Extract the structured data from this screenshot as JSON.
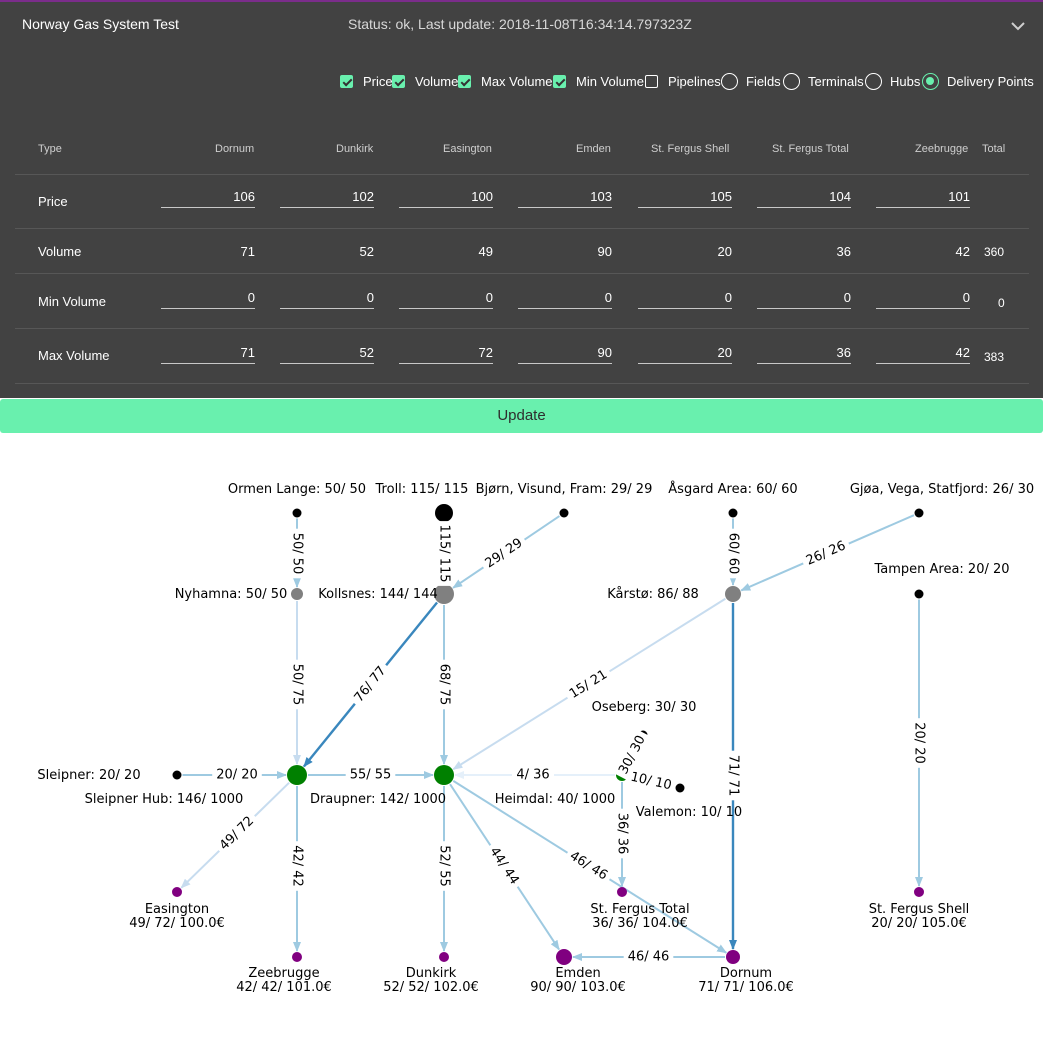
{
  "header": {
    "title": "Norway Gas System Test",
    "status": "Status: ok, Last update: 2018-11-08T16:34:14.797323Z"
  },
  "toggles": [
    {
      "label": "Price",
      "checked": true
    },
    {
      "label": "Volume",
      "checked": true
    },
    {
      "label": "Max Volume",
      "checked": true
    },
    {
      "label": "Min Volume",
      "checked": true
    },
    {
      "label": "Pipelines",
      "checked": false
    }
  ],
  "radios": [
    {
      "label": "Fields",
      "selected": false
    },
    {
      "label": "Terminals",
      "selected": false
    },
    {
      "label": "Hubs",
      "selected": false
    },
    {
      "label": "Delivery Points",
      "selected": true
    }
  ],
  "table": {
    "headers": [
      "Type",
      "Dornum",
      "Dunkirk",
      "Easington",
      "Emden",
      "St. Fergus Shell",
      "St. Fergus Total",
      "Zeebrugge",
      "Total"
    ],
    "rows": {
      "price": {
        "label": "Price",
        "values": [
          "106",
          "102",
          "100",
          "103",
          "105",
          "104",
          "101"
        ],
        "total": ""
      },
      "volume": {
        "label": "Volume",
        "values": [
          "71",
          "52",
          "49",
          "90",
          "20",
          "36",
          "42"
        ],
        "total": "360"
      },
      "min_volume": {
        "label": "Min Volume",
        "values": [
          "0",
          "0",
          "0",
          "0",
          "0",
          "0",
          "0"
        ],
        "total": "0"
      },
      "max_volume": {
        "label": "Max Volume",
        "values": [
          "71",
          "52",
          "72",
          "90",
          "20",
          "36",
          "42"
        ],
        "total": "383"
      }
    }
  },
  "update_label": "Update",
  "colors": {
    "accent": "#69f0ae",
    "panel": "#424242",
    "field": "#000000",
    "hub": "#808080",
    "junction": "#008000",
    "delivery": "#800080"
  },
  "graph": {
    "nodes": [
      {
        "id": "ormen",
        "kind": "field",
        "label": "Ormen Lange: 50/ 50"
      },
      {
        "id": "troll",
        "kind": "field",
        "label": "Troll: 115/ 115"
      },
      {
        "id": "bjorn",
        "kind": "field",
        "label": "Bjørn, Visund, Fram: 29/ 29"
      },
      {
        "id": "asgard",
        "kind": "field",
        "label": "Åsgard Area: 60/ 60"
      },
      {
        "id": "gjoa",
        "kind": "field",
        "label": "Gjøa, Vega, Statfjord: 26/ 30"
      },
      {
        "id": "tampen",
        "kind": "field",
        "label": "Tampen Area: 20/ 20"
      },
      {
        "id": "nyhamna",
        "kind": "terminal",
        "label": "Nyhamna: 50/ 50"
      },
      {
        "id": "kollsnes",
        "kind": "terminal",
        "label": "Kollsnes: 144/ 144"
      },
      {
        "id": "karsto",
        "kind": "terminal",
        "label": "Kårstø: 86/ 88"
      },
      {
        "id": "oseberg",
        "kind": "field",
        "label": "Oseberg: 30/ 30"
      },
      {
        "id": "sleipner",
        "kind": "field",
        "label": "Sleipner: 20/ 20"
      },
      {
        "id": "sleipnerhub",
        "kind": "hub",
        "label": "Sleipner Hub: 146/ 1000"
      },
      {
        "id": "draupner",
        "kind": "hub",
        "label": "Draupner: 142/ 1000"
      },
      {
        "id": "heimdal",
        "kind": "hub",
        "label": "Heimdal: 40/ 1000"
      },
      {
        "id": "valemon",
        "kind": "field",
        "label": "Valemon: 10/ 10"
      },
      {
        "id": "easington",
        "kind": "delivery",
        "label": "Easington",
        "sub": "49/ 72/ 100.0€"
      },
      {
        "id": "zeebrugge",
        "kind": "delivery",
        "label": "Zeebrugge",
        "sub": "42/ 42/ 101.0€"
      },
      {
        "id": "dunkirk",
        "kind": "delivery",
        "label": "Dunkirk",
        "sub": "52/ 52/ 102.0€"
      },
      {
        "id": "emden",
        "kind": "delivery",
        "label": "Emden",
        "sub": "90/ 90/ 103.0€"
      },
      {
        "id": "dornum",
        "kind": "delivery",
        "label": "Dornum",
        "sub": "71/ 71/ 106.0€"
      },
      {
        "id": "stftotal",
        "kind": "delivery",
        "label": "St. Fergus Total",
        "sub": "36/ 36/ 104.0€"
      },
      {
        "id": "stfshell",
        "kind": "delivery",
        "label": "St. Fergus Shell",
        "sub": "20/ 20/ 105.0€"
      }
    ],
    "edges": [
      {
        "from": "ormen",
        "to": "nyhamna",
        "label": "50/ 50",
        "flow": 50,
        "cap": 50
      },
      {
        "from": "troll",
        "to": "kollsnes",
        "label": "115/ 115",
        "flow": 115,
        "cap": 115
      },
      {
        "from": "bjorn",
        "to": "kollsnes",
        "label": "29/ 29",
        "flow": 29,
        "cap": 29
      },
      {
        "from": "asgard",
        "to": "karsto",
        "label": "60/ 60",
        "flow": 60,
        "cap": 60
      },
      {
        "from": "gjoa",
        "to": "karsto",
        "label": "26/ 26",
        "flow": 26,
        "cap": 26
      },
      {
        "from": "nyhamna",
        "to": "sleipnerhub",
        "label": "50/ 75",
        "flow": 50,
        "cap": 75
      },
      {
        "from": "kollsnes",
        "to": "sleipnerhub",
        "label": "76/ 77",
        "flow": 76,
        "cap": 77
      },
      {
        "from": "kollsnes",
        "to": "draupner",
        "label": "68/ 75",
        "flow": 68,
        "cap": 75
      },
      {
        "from": "karsto",
        "to": "draupner",
        "label": "15/ 21",
        "flow": 15,
        "cap": 21
      },
      {
        "from": "karsto",
        "to": "dornum",
        "label": "71/ 71",
        "flow": 71,
        "cap": 71
      },
      {
        "from": "tampen",
        "to": "stfshell",
        "label": "20/ 20",
        "flow": 20,
        "cap": 20
      },
      {
        "from": "sleipner",
        "to": "sleipnerhub",
        "label": "20/ 20",
        "flow": 20,
        "cap": 20
      },
      {
        "from": "sleipnerhub",
        "to": "draupner",
        "label": "55/ 55",
        "flow": 55,
        "cap": 55
      },
      {
        "from": "heimdal",
        "to": "draupner",
        "label": "4/ 36",
        "flow": 4,
        "cap": 36
      },
      {
        "from": "oseberg",
        "to": "heimdal",
        "label": "30/ 30",
        "flow": 30,
        "cap": 30
      },
      {
        "from": "valemon",
        "to": "heimdal",
        "label": "10/ 10",
        "flow": 10,
        "cap": 10
      },
      {
        "from": "sleipnerhub",
        "to": "easington",
        "label": "49/ 72",
        "flow": 49,
        "cap": 72
      },
      {
        "from": "sleipnerhub",
        "to": "zeebrugge",
        "label": "42/ 42",
        "flow": 42,
        "cap": 42
      },
      {
        "from": "draupner",
        "to": "dunkirk",
        "label": "52/ 55",
        "flow": 52,
        "cap": 55
      },
      {
        "from": "draupner",
        "to": "emden",
        "label": "44/ 44",
        "flow": 44,
        "cap": 44
      },
      {
        "from": "draupner",
        "to": "dornum",
        "label": "46/ 46",
        "flow": 46,
        "cap": 46
      },
      {
        "from": "heimdal",
        "to": "stftotal",
        "label": "36/ 36",
        "flow": 36,
        "cap": 36
      },
      {
        "from": "dornum",
        "to": "emden",
        "label": "46/ 46",
        "flow": 46,
        "cap": 46
      }
    ]
  }
}
